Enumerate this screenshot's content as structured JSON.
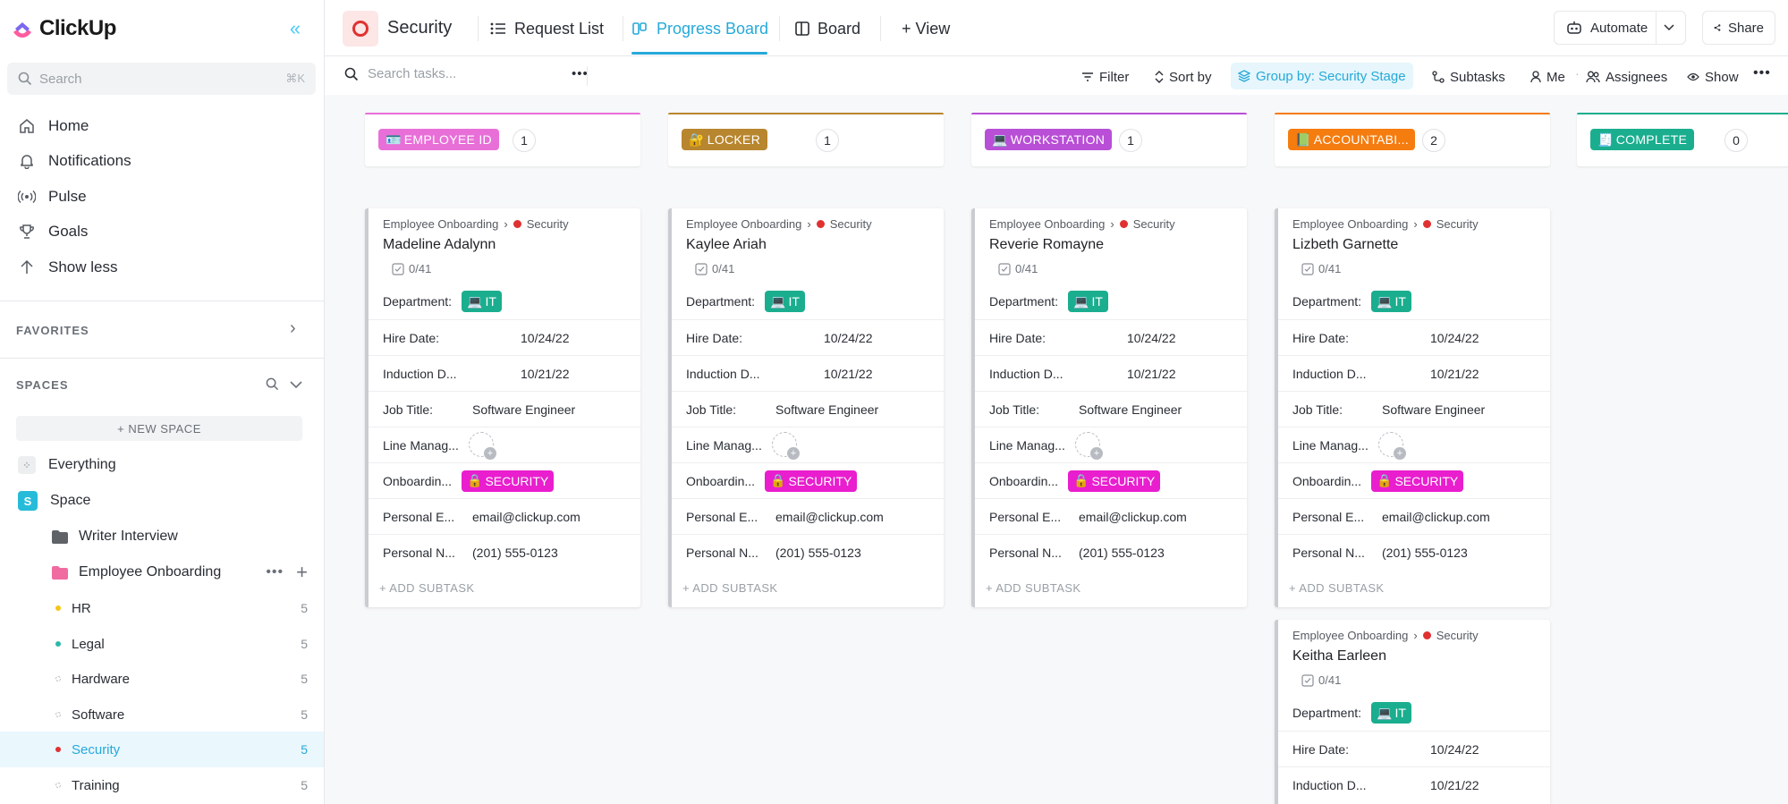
{
  "app": {
    "name": "ClickUp"
  },
  "sidebar": {
    "search_placeholder": "Search",
    "search_shortcut": "⌘K",
    "nav": [
      {
        "label": "Home",
        "icon": "home-icon"
      },
      {
        "label": "Notifications",
        "icon": "bell-icon"
      },
      {
        "label": "Pulse",
        "icon": "pulse-icon"
      },
      {
        "label": "Goals",
        "icon": "trophy-icon"
      },
      {
        "label": "Show less",
        "icon": "arrow-up-icon"
      }
    ],
    "favorites_label": "FAVORITES",
    "spaces_label": "SPACES",
    "new_space_label": "+ NEW SPACE",
    "everything_label": "Everything",
    "space_label": "Space",
    "space_badge": "S",
    "folders": [
      {
        "label": "Writer Interview"
      },
      {
        "label": "Employee Onboarding"
      }
    ],
    "lists": [
      {
        "label": "HR",
        "count": "5",
        "dot": "#f5c518"
      },
      {
        "label": "Legal",
        "count": "5",
        "dot": "#2eb8a6"
      },
      {
        "label": "Hardware",
        "count": "5",
        "dot": ""
      },
      {
        "label": "Software",
        "count": "5",
        "dot": ""
      },
      {
        "label": "Security",
        "count": "5",
        "dot": "#e03131"
      },
      {
        "label": "Training",
        "count": "5",
        "dot": ""
      }
    ]
  },
  "header": {
    "title": "Security",
    "tabs": [
      {
        "label": "Request List"
      },
      {
        "label": "Progress Board"
      },
      {
        "label": "Board"
      },
      {
        "label": "+ View"
      }
    ],
    "automate_label": "Automate",
    "share_label": "Share"
  },
  "toolbar": {
    "search_placeholder": "Search tasks...",
    "filter": "Filter",
    "sort": "Sort by",
    "group": "Group by: Security Stage",
    "subtasks": "Subtasks",
    "me": "Me",
    "assignees": "Assignees",
    "show": "Show"
  },
  "columns": [
    {
      "label": "EMPLOYEE ID",
      "emoji": "🪪",
      "count": "1",
      "color": "#e86fd8",
      "bar": "#e86fd8"
    },
    {
      "label": "LOCKER",
      "emoji": "🔐",
      "count": "1",
      "color": "#b8862e",
      "bar": "#b8862e"
    },
    {
      "label": "WORKSTATION",
      "emoji": "💻",
      "count": "1",
      "color": "#b84fd6",
      "bar": "#b84fd6"
    },
    {
      "label": "ACCOUNTABI...",
      "emoji": "📗",
      "count": "2",
      "color": "#f57c0f",
      "bar": "#f57c0f"
    },
    {
      "label": "COMPLETE",
      "emoji": "🧾",
      "count": "0",
      "color": "#1aae8f",
      "bar": "#1aae8f"
    }
  ],
  "card_labels": {
    "crumb_list": "Employee Onboarding",
    "crumb_sep": "›",
    "crumb_item": "Security",
    "subtasks": "0/41",
    "department": "Department:",
    "hire_date": "Hire Date:",
    "induction": "Induction D...",
    "job_title": "Job Title:",
    "line_manager": "Line Manag...",
    "onboarding": "Onboardin...",
    "personal_email": "Personal E...",
    "personal_number": "Personal N...",
    "add_subtask": "+ ADD SUBTASK"
  },
  "cards": [
    {
      "name": "Madeline Adalynn",
      "dept": "IT",
      "hire": "10/24/22",
      "induction": "10/21/22",
      "job": "Software Engineer",
      "onboarding": "SECURITY",
      "email": "email@clickup.com",
      "phone": "(201) 555-0123"
    },
    {
      "name": "Kaylee Ariah",
      "dept": "IT",
      "hire": "10/24/22",
      "induction": "10/21/22",
      "job": "Software Engineer",
      "onboarding": "SECURITY",
      "email": "email@clickup.com",
      "phone": "(201) 555-0123"
    },
    {
      "name": "Reverie Romayne",
      "dept": "IT",
      "hire": "10/24/22",
      "induction": "10/21/22",
      "job": "Software Engineer",
      "onboarding": "SECURITY",
      "email": "email@clickup.com",
      "phone": "(201) 555-0123"
    },
    {
      "name": "Lizbeth Garnette",
      "dept": "IT",
      "hire": "10/24/22",
      "induction": "10/21/22",
      "job": "Software Engineer",
      "onboarding": "SECURITY",
      "email": "email@clickup.com",
      "phone": "(201) 555-0123"
    },
    {
      "name": "Keitha Earleen",
      "dept": "IT",
      "hire": "10/24/22",
      "induction": "10/21/22"
    }
  ],
  "colors": {
    "accent": "#26a9d9",
    "dept_chip": "#1aae8f",
    "security_chip": "#e91ece"
  }
}
